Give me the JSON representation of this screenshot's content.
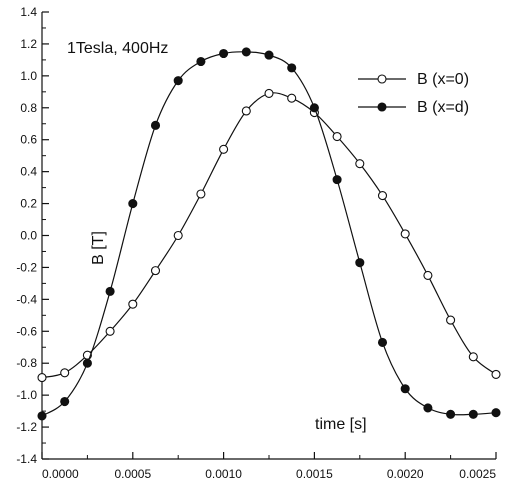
{
  "chart_data": {
    "type": "line",
    "xlabel": "time [s]",
    "ylabel": "B [T]",
    "annotation": "1Tesla, 400Hz",
    "xlim": [
      0,
      0.0025
    ],
    "ylim": [
      -1.4,
      1.4
    ],
    "x_ticks": [
      "0.0000",
      "0.0005",
      "0.0010",
      "0.0015",
      "0.0020",
      "0.0025"
    ],
    "y_ticks": [
      "1.4",
      "1.2",
      "1.0",
      "0.8",
      "0.6",
      "0.4",
      "0.2",
      "0.0",
      "-0.2",
      "-0.4",
      "-0.6",
      "-0.8",
      "-1.0",
      "-1.2",
      "-1.4"
    ],
    "grid": false,
    "legend_position": "top-right",
    "colors": {
      "axes": "#111111",
      "series": "#111111",
      "background": "#ffffff"
    },
    "series": [
      {
        "name": "B (x=0)",
        "marker": "open-circle",
        "points": [
          [
            0.0,
            -0.89
          ],
          [
            0.000125,
            -0.86
          ],
          [
            0.00025,
            -0.75
          ],
          [
            0.000375,
            -0.6
          ],
          [
            0.0005,
            -0.43
          ],
          [
            0.000625,
            -0.22
          ],
          [
            0.00075,
            0.0
          ],
          [
            0.000875,
            0.26
          ],
          [
            0.001,
            0.54
          ],
          [
            0.001125,
            0.78
          ],
          [
            0.00125,
            0.89
          ],
          [
            0.001375,
            0.86
          ],
          [
            0.0015,
            0.77
          ],
          [
            0.001625,
            0.62
          ],
          [
            0.00175,
            0.45
          ],
          [
            0.001875,
            0.25
          ],
          [
            0.002,
            0.01
          ],
          [
            0.002125,
            -0.25
          ],
          [
            0.00225,
            -0.53
          ],
          [
            0.002375,
            -0.76
          ],
          [
            0.0025,
            -0.87
          ]
        ]
      },
      {
        "name": "B (x=d)",
        "marker": "filled-circle",
        "points": [
          [
            0.0,
            -1.13
          ],
          [
            0.000125,
            -1.04
          ],
          [
            0.00025,
            -0.8
          ],
          [
            0.000375,
            -0.35
          ],
          [
            0.0005,
            0.2
          ],
          [
            0.000625,
            0.69
          ],
          [
            0.00075,
            0.97
          ],
          [
            0.000875,
            1.09
          ],
          [
            0.001,
            1.14
          ],
          [
            0.001125,
            1.15
          ],
          [
            0.00125,
            1.13
          ],
          [
            0.001375,
            1.05
          ],
          [
            0.0015,
            0.8
          ],
          [
            0.001625,
            0.35
          ],
          [
            0.00175,
            -0.17
          ],
          [
            0.001875,
            -0.67
          ],
          [
            0.002,
            -0.96
          ],
          [
            0.002125,
            -1.08
          ],
          [
            0.00225,
            -1.12
          ],
          [
            0.002375,
            -1.12
          ],
          [
            0.0025,
            -1.11
          ]
        ]
      }
    ]
  }
}
